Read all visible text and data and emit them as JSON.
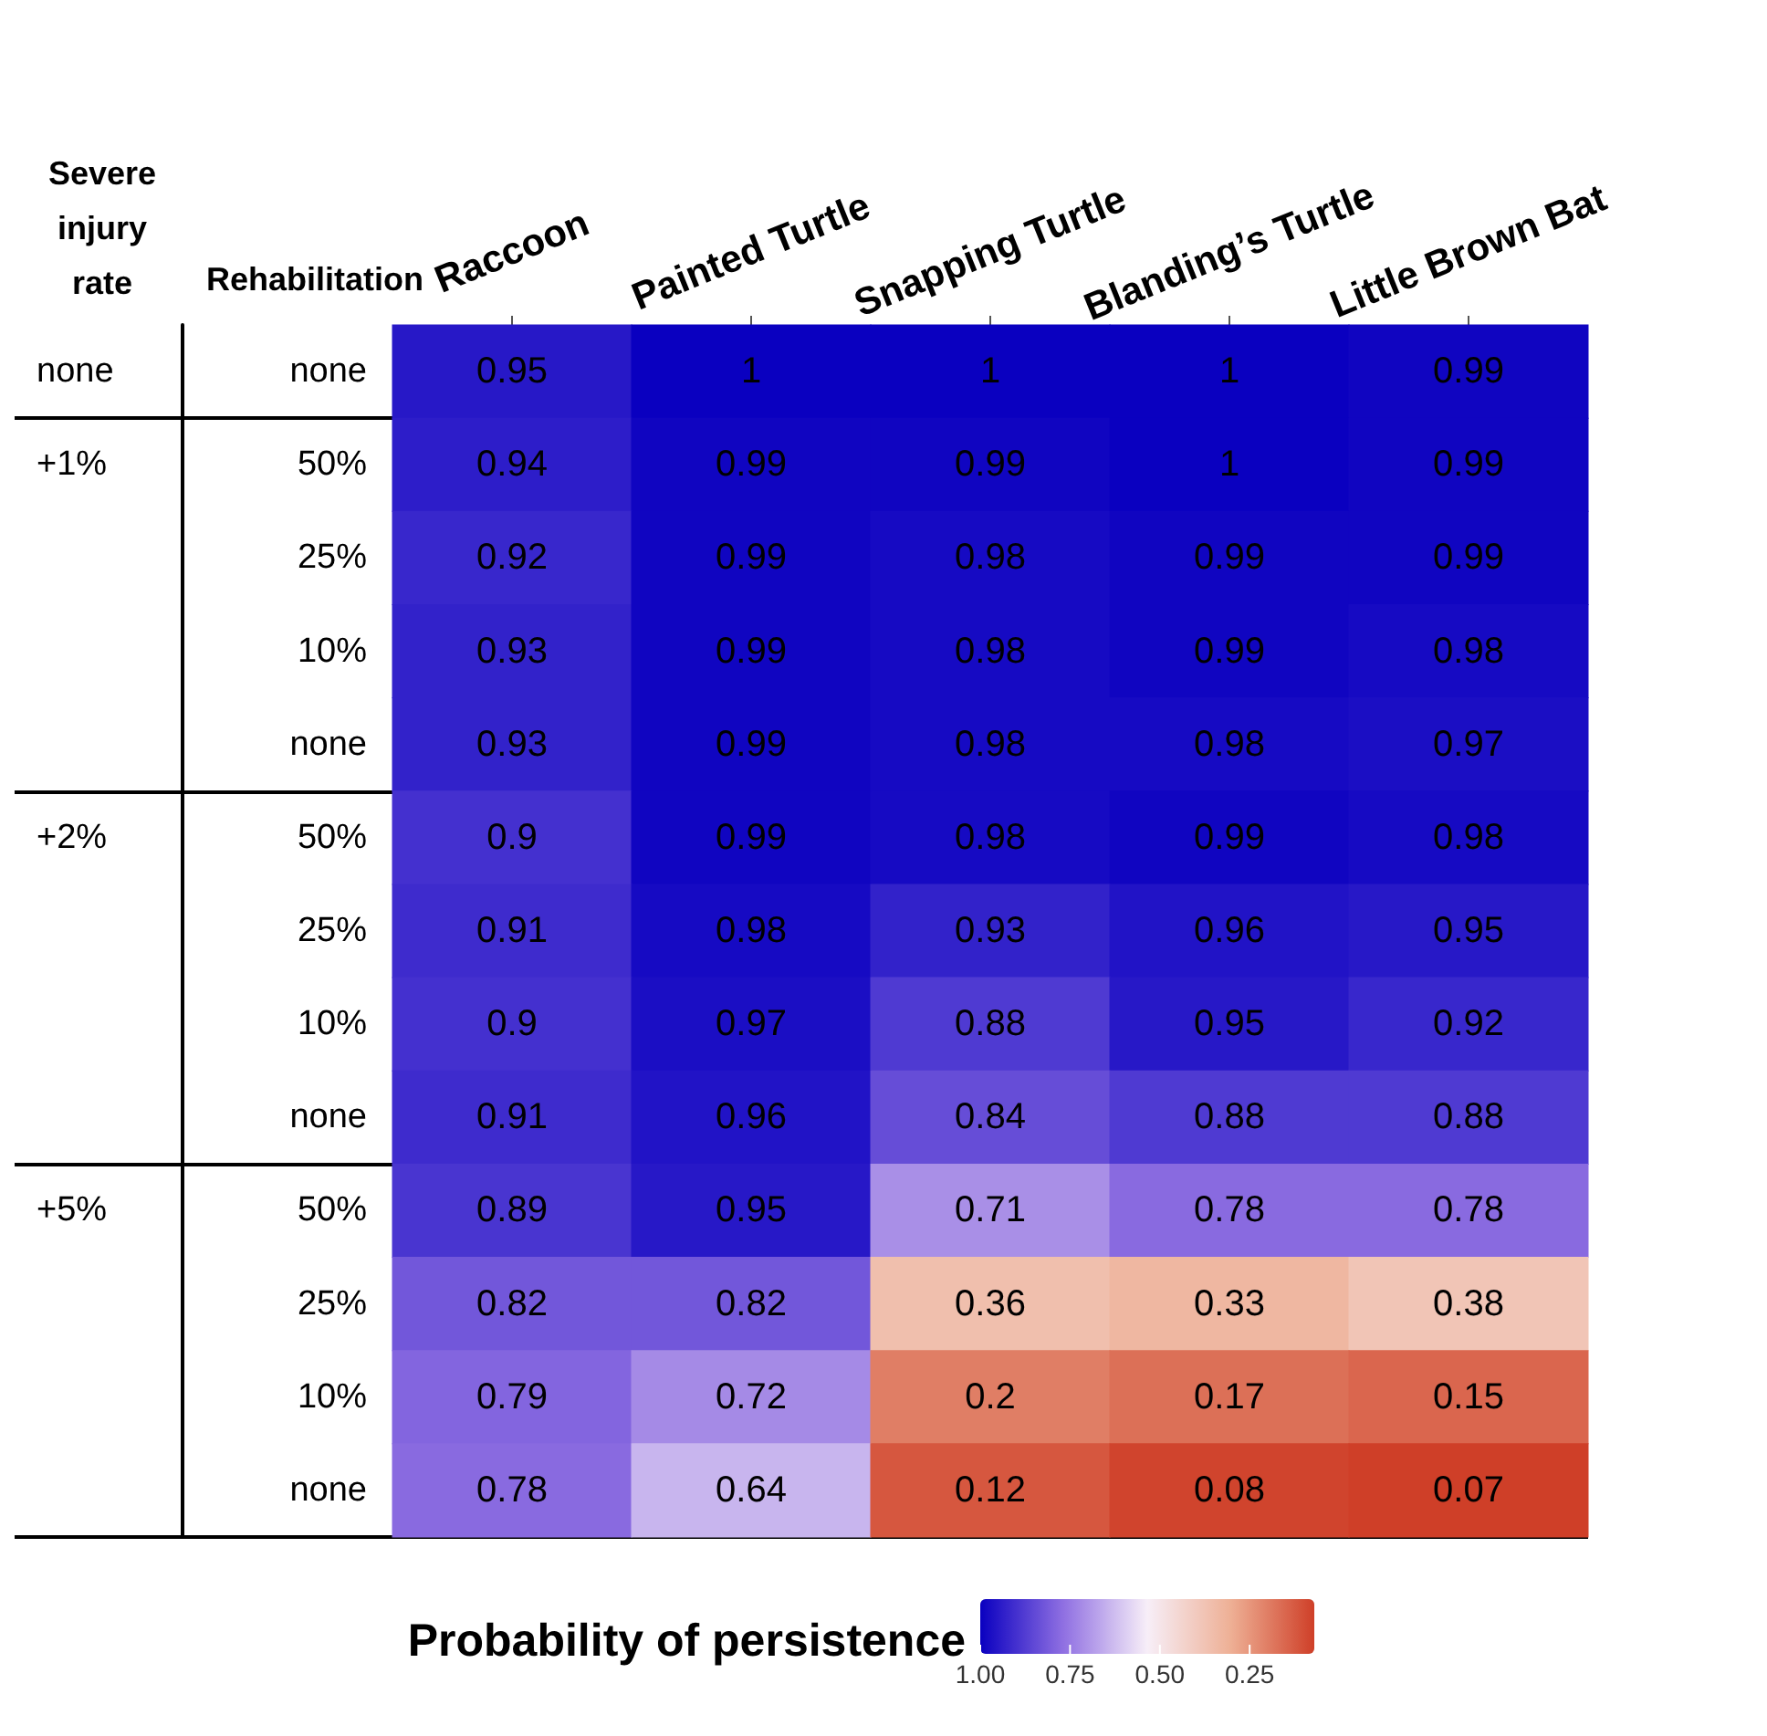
{
  "chart_data": {
    "type": "heatmap",
    "categories": [
      "Raccoon",
      "Painted Turtle",
      "Snapping Turtle",
      "Blanding’s Turtle",
      "Little Brown Bat"
    ],
    "y_categories": [
      "none",
      "50%",
      "25%",
      "10%",
      "none",
      "50%",
      "25%",
      "10%",
      "none",
      "50%",
      "25%",
      "10%",
      "none"
    ],
    "y2_categories": [
      "none",
      "+1%",
      null,
      null,
      null,
      "+2%",
      null,
      null,
      null,
      "+5%",
      null,
      null,
      null
    ],
    "ylabel": "Rehabilitation",
    "y2label": "Severe injury rate",
    "clabel": "Probability of persistence",
    "clim": [
      1,
      0.07
    ],
    "cticks": [
      {
        "value": 1,
        "label": "1.00"
      },
      {
        "value": 0.75,
        "label": "0.75"
      },
      {
        "value": 0.5,
        "label": "0.50"
      },
      {
        "value": 0.25,
        "label": "0.25"
      }
    ],
    "colors": [
      "#0a00c0",
      "#9070e2",
      "#f7eef8",
      "#eeb095",
      "#cf3f28"
    ],
    "data_labels": true,
    "cells": [
      [
        0.95,
        1,
        1,
        1,
        0.99
      ],
      [
        0.94,
        0.99,
        0.99,
        1,
        0.99
      ],
      [
        0.92,
        0.99,
        0.98,
        0.99,
        0.99
      ],
      [
        0.93,
        0.99,
        0.98,
        0.99,
        0.98
      ],
      [
        0.93,
        0.99,
        0.98,
        0.98,
        0.97
      ],
      [
        0.9,
        0.99,
        0.98,
        0.99,
        0.98
      ],
      [
        0.91,
        0.98,
        0.93,
        0.96,
        0.95
      ],
      [
        0.9,
        0.97,
        0.88,
        0.95,
        0.92
      ],
      [
        0.91,
        0.96,
        0.84,
        0.88,
        0.88
      ],
      [
        0.89,
        0.95,
        0.71,
        0.78,
        0.78
      ],
      [
        0.82,
        0.82,
        0.36,
        0.33,
        0.38
      ],
      [
        0.79,
        0.72,
        0.2,
        0.17,
        0.15
      ],
      [
        0.78,
        0.64,
        0.12,
        0.08,
        0.07
      ]
    ]
  }
}
